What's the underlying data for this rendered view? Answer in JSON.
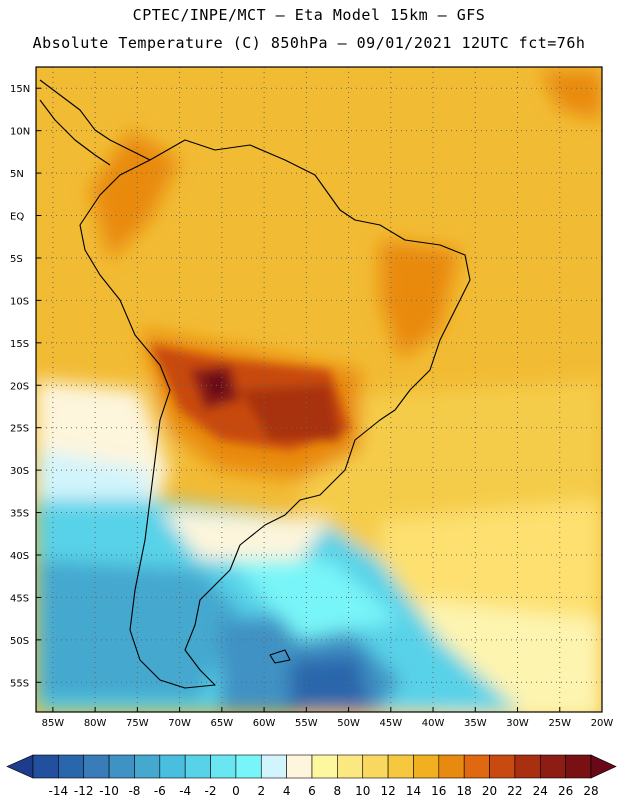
{
  "title": {
    "line1": "CPTEC/INPE/MCT –  Eta Model 15km – GFS",
    "line2": "Absolute Temperature (C) 850hPa – 09/01/2021 12UTC fct=76h"
  },
  "axes": {
    "lat_labels": [
      "15N",
      "10N",
      "5N",
      "EQ",
      "5S",
      "10S",
      "15S",
      "20S",
      "25S",
      "30S",
      "35S",
      "40S",
      "45S",
      "50S",
      "55S"
    ],
    "lat_values": [
      15,
      10,
      5,
      0,
      -5,
      -10,
      -15,
      -20,
      -25,
      -30,
      -35,
      -40,
      -45,
      -50,
      -55
    ],
    "lon_labels": [
      "85W",
      "80W",
      "75W",
      "70W",
      "65W",
      "60W",
      "55W",
      "50W",
      "45W",
      "40W",
      "35W",
      "30W",
      "25W",
      "20W"
    ],
    "lon_values": [
      -85,
      -80,
      -75,
      -70,
      -65,
      -60,
      -55,
      -50,
      -45,
      -40,
      -35,
      -30,
      -25,
      -20
    ]
  },
  "colorbar": {
    "labels": [
      "-14",
      "-12",
      "-10",
      "-8",
      "-6",
      "-4",
      "-2",
      "0",
      "2",
      "4",
      "6",
      "8",
      "10",
      "12",
      "14",
      "16",
      "18",
      "20",
      "22",
      "24",
      "26",
      "28"
    ],
    "colors": [
      "#1e3c8c",
      "#23509c",
      "#2a66ac",
      "#3a7cba",
      "#3f92c4",
      "#44a8cf",
      "#4abede",
      "#58d2e8",
      "#6ae6f2",
      "#78f5f8",
      "#d2f4fc",
      "#fdf5dc",
      "#fdf8a0",
      "#fce880",
      "#f9d860",
      "#f5c840",
      "#f0b020",
      "#e98a10",
      "#e06810",
      "#c84a10",
      "#a83010",
      "#8c1c14",
      "#781014",
      "#680818"
    ]
  },
  "colors": {
    "frame": "#000000",
    "grid": "#666666",
    "coast": "#000000"
  }
}
